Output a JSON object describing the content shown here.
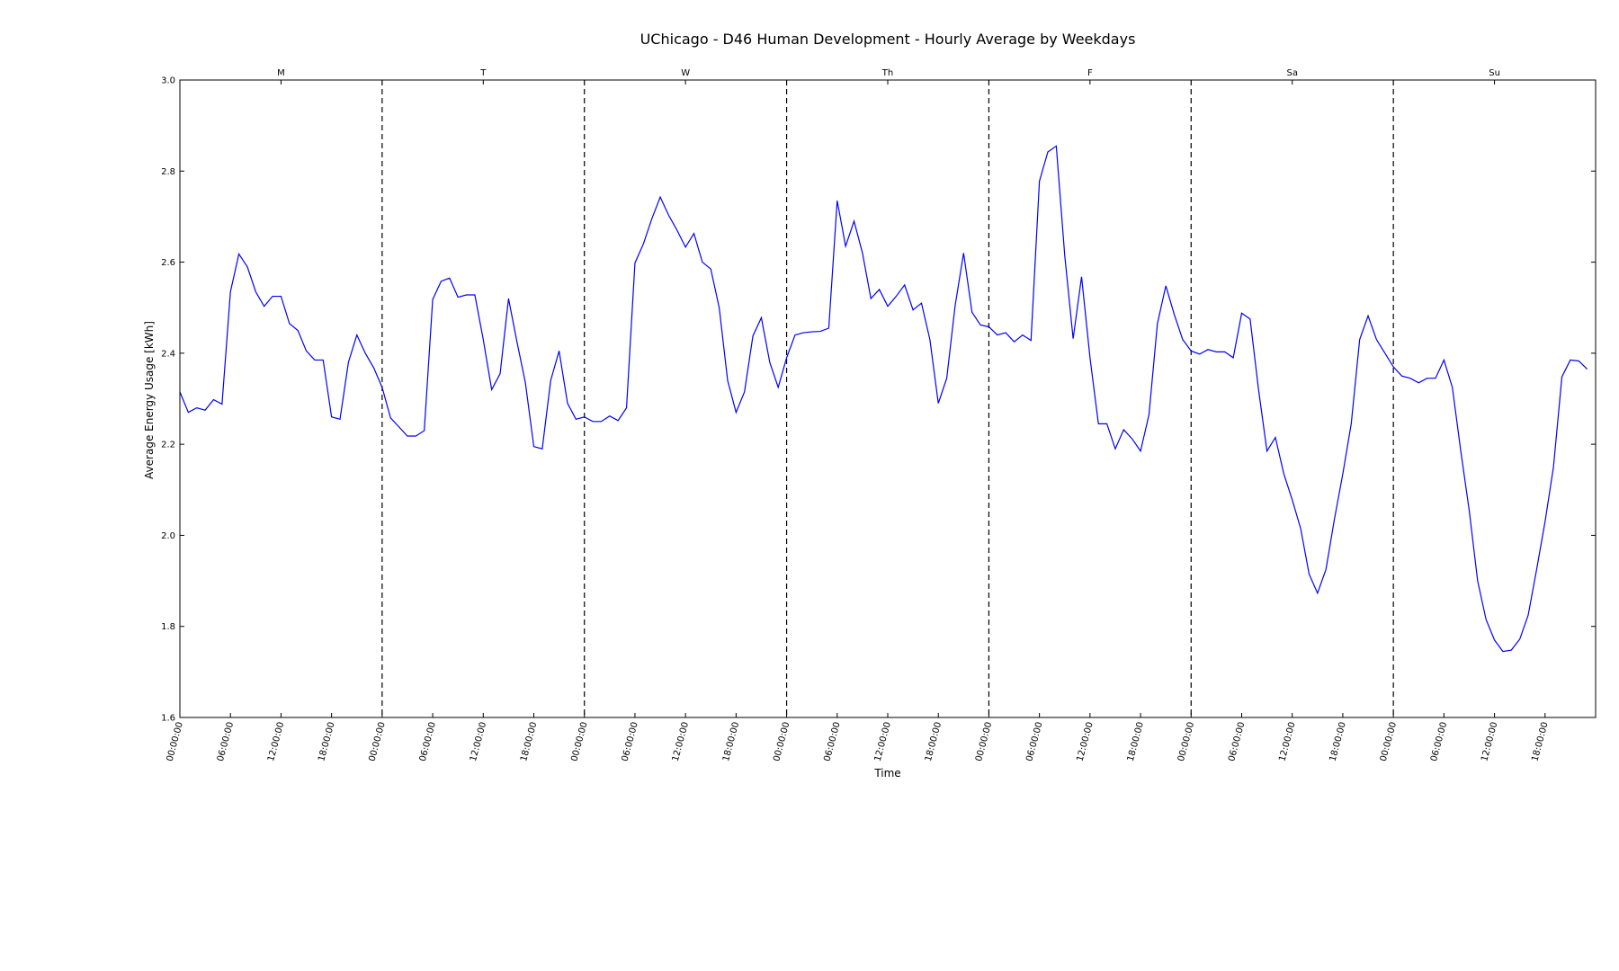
{
  "chart_data": {
    "type": "line",
    "title": "UChicago - D46 Human Development - Hourly Average by Weekdays",
    "xlabel": "Time",
    "ylabel": "Average Energy Usage [kWh]",
    "ylim": [
      1.6,
      3.0
    ],
    "yticks": [
      "1.6",
      "1.8",
      "2.0",
      "2.2",
      "2.4",
      "2.6",
      "2.8",
      "3.0"
    ],
    "xtick_labels": [
      "00:00:00",
      "06:00:00",
      "12:00:00",
      "18:00:00"
    ],
    "days": [
      "M",
      "T",
      "W",
      "Th",
      "F",
      "Sa",
      "Su"
    ],
    "grid": false,
    "line_color": "#0000ff",
    "divider_color": "#000000",
    "series": [
      {
        "values": [
          2.315,
          2.27,
          2.28,
          2.275,
          2.298,
          2.288,
          2.535,
          2.618,
          2.59,
          2.535,
          2.503,
          2.525,
          2.525,
          2.465,
          2.45,
          2.405,
          2.385,
          2.385,
          2.26,
          2.255,
          2.38,
          2.44,
          2.4,
          2.368,
          2.325,
          2.258,
          2.238,
          2.218,
          2.218,
          2.23,
          2.518,
          2.558,
          2.565,
          2.523,
          2.528,
          2.528,
          2.43,
          2.32,
          2.355,
          2.52,
          2.425,
          2.335,
          2.195,
          2.19,
          2.34,
          2.405,
          2.29,
          2.255,
          2.26,
          2.25,
          2.25,
          2.262,
          2.252,
          2.28,
          2.598,
          2.64,
          2.695,
          2.743,
          2.703,
          2.67,
          2.633,
          2.663,
          2.6,
          2.585,
          2.5,
          2.34,
          2.27,
          2.315,
          2.438,
          2.478,
          2.38,
          2.325,
          2.39,
          2.44,
          2.445,
          2.447,
          2.448,
          2.455,
          2.735,
          2.635,
          2.69,
          2.62,
          2.52,
          2.54,
          2.503,
          2.525,
          2.55,
          2.495,
          2.51,
          2.43,
          2.29,
          2.345,
          2.505,
          2.62,
          2.49,
          2.462,
          2.458,
          2.44,
          2.445,
          2.425,
          2.44,
          2.428,
          2.778,
          2.842,
          2.855,
          2.615,
          2.432,
          2.568,
          2.39,
          2.245,
          2.245,
          2.19,
          2.232,
          2.212,
          2.185,
          2.265,
          2.465,
          2.548,
          2.485,
          2.43,
          2.405,
          2.398,
          2.408,
          2.403,
          2.403,
          2.39,
          2.488,
          2.475,
          2.32,
          2.185,
          2.215,
          2.135,
          2.078,
          2.015,
          1.915,
          1.873,
          1.925,
          2.035,
          2.135,
          2.245,
          2.43,
          2.482,
          2.43,
          2.4,
          2.37,
          2.35,
          2.345,
          2.335,
          2.345,
          2.345,
          2.385,
          2.325,
          2.185,
          2.055,
          1.9,
          1.815,
          1.77,
          1.745,
          1.748,
          1.772,
          1.825,
          1.925,
          2.03,
          2.15,
          2.348,
          2.385,
          2.383,
          2.365
        ]
      }
    ]
  }
}
